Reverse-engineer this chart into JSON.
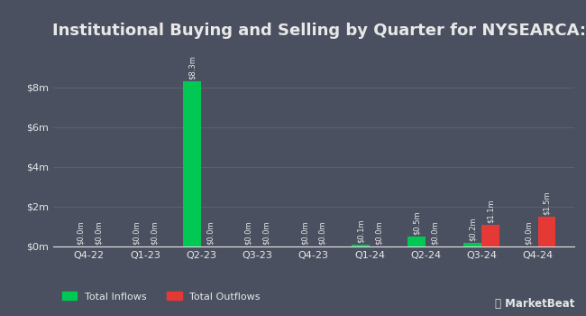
{
  "title": "Institutional Buying and Selling by Quarter for NYSEARCA:FNGU",
  "quarters": [
    "Q4-22",
    "Q1-23",
    "Q2-23",
    "Q3-23",
    "Q4-23",
    "Q1-24",
    "Q2-24",
    "Q3-24",
    "Q4-24"
  ],
  "inflows": [
    0.0,
    0.0,
    8.3,
    0.0,
    0.0,
    0.1,
    0.5,
    0.2,
    0.0
  ],
  "outflows": [
    0.0,
    0.0,
    0.0,
    0.0,
    0.0,
    0.0,
    0.0,
    1.1,
    1.5
  ],
  "inflow_labels": [
    "$0.0m",
    "$0.0m",
    "$8.3m",
    "$0.0m",
    "$0.0m",
    "$0.1m",
    "$0.5m",
    "$0.2m",
    "$0.0m"
  ],
  "outflow_labels": [
    "$0.0m",
    "$0.0m",
    "$0.0m",
    "$0.0m",
    "$0.0m",
    "$0.0m",
    "$0.0m",
    "$1.1m",
    "$1.5m"
  ],
  "inflow_color": "#00c853",
  "outflow_color": "#e53935",
  "bg_color": "#4a5060",
  "text_color": "#e8e8e8",
  "grid_color": "#5a6070",
  "bar_width": 0.32,
  "ylim": [
    0,
    10
  ],
  "yticks": [
    0,
    2,
    4,
    6,
    8
  ],
  "ytick_labels": [
    "$0m",
    "$2m",
    "$4m",
    "$6m",
    "$8m"
  ],
  "legend_inflow": "Total Inflows",
  "legend_outflow": "Total Outflows",
  "title_fontsize": 13,
  "label_fontsize": 6,
  "tick_fontsize": 8
}
